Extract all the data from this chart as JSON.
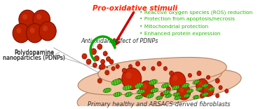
{
  "background_color": "#ffffff",
  "title": "Pro-oxidative stimuli",
  "title_color": "#ff2200",
  "title_fontsize": 7.5,
  "subtitle": "Primary healthy and ARSACS-derived fibroblasts",
  "subtitle_fontsize": 6.0,
  "left_label_line1": "Polydopamine",
  "left_label_line2": "nanoparticles (PDNPs)",
  "antioxidant_label": "Antioxidant effect of PDNPs",
  "green_bullet_texts": [
    "Reactive oxygen species (ROS) reduction",
    "Protection from apoptosis/necrosis",
    "Mitochondrial protection",
    "Enhanced protein expression"
  ],
  "green_text_color": "#22bb00",
  "dark_red_color": "#b82000",
  "dark_red_edge": "#7a1000",
  "cell_fill_color": "#f2c5a8",
  "cell_edge_color": "#b08060",
  "mito_fill": "#55cc22",
  "mito_edge": "#228800",
  "mito_stripe": "#115500",
  "red_circle_color": "#cc2200",
  "red_circle_edge": "#8b1000",
  "arrow_red_color": "#cc0000",
  "arrow_green_color": "#00aa00",
  "text_color": "#333333",
  "label_fontsize": 5.8,
  "bullet_fontsize": 5.4,
  "antioxidant_fontsize": 5.8
}
